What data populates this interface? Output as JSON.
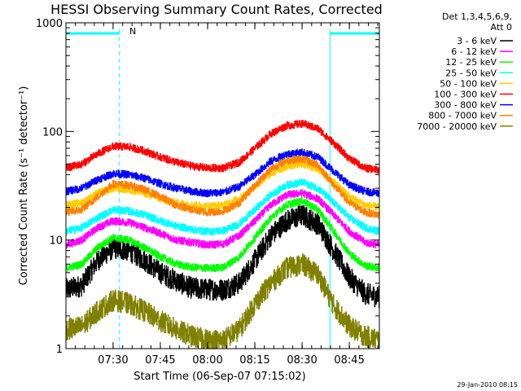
{
  "chart_data": {
    "type": "line",
    "title": "HESSI Observing Summary Count Rates, Corrected",
    "xlabel": "Start Time (06-Sep-07 07:15:02)",
    "ylabel": "Corrected Count Rate (s⁻¹ detector⁻¹)",
    "yscale": "log",
    "ylim": [
      1,
      1000
    ],
    "xlim": [
      0,
      5970
    ],
    "x_tick_labels": [
      "07:30",
      "07:45",
      "08:00",
      "08:15",
      "08:30",
      "08:45"
    ],
    "x_ticks": [
      898,
      1798,
      2698,
      3598,
      4498,
      5398
    ],
    "y_tick_labels": [
      "1",
      "10",
      "100",
      "1000"
    ],
    "y_ticks": [
      1,
      10,
      100,
      1000
    ],
    "grid": false,
    "legend_position": "right",
    "legend_header": [
      "Det 1,3,4,5,6,9,",
      "Att 0"
    ],
    "timestamp": "29-Jan-2010 08:15",
    "annotation": "N",
    "annotation_color": "#00ffff",
    "night_intervals": [
      [
        0,
        1020
      ],
      [
        5030,
        5970
      ]
    ],
    "saa_dashed_lines": [
      1020,
      5970
    ],
    "solid_boundary_lines": [
      5030
    ],
    "series": [
      {
        "name": "3 - 6 keV",
        "color": "#000000",
        "x": [
          0,
          300,
          600,
          900,
          1200,
          1500,
          1800,
          2100,
          2400,
          2700,
          3000,
          3300,
          3600,
          3900,
          4200,
          4500,
          4800,
          5100,
          5400,
          5700,
          5970
        ],
        "values": [
          3.5,
          3.8,
          6.5,
          8.5,
          8.0,
          6.5,
          5.0,
          4.2,
          3.6,
          3.5,
          3.5,
          4.0,
          6.5,
          11,
          15,
          17,
          14,
          8.0,
          4.5,
          3.2,
          3.0
        ]
      },
      {
        "name": "6 - 12 keV",
        "color": "#ff00ff",
        "x": [
          0,
          300,
          600,
          900,
          1200,
          1500,
          1800,
          2100,
          2400,
          2700,
          3000,
          3300,
          3600,
          3900,
          4200,
          4500,
          4800,
          5100,
          5400,
          5700,
          5970
        ],
        "values": [
          9.0,
          10,
          13,
          15,
          14.5,
          13,
          11.5,
          10,
          9.5,
          9.0,
          9.2,
          11,
          15,
          21,
          26,
          27,
          24,
          17,
          12,
          9.5,
          9.0
        ]
      },
      {
        "name": "12 - 25 keV",
        "color": "#00ff00",
        "x": [
          0,
          300,
          600,
          900,
          1200,
          1500,
          1800,
          2100,
          2400,
          2700,
          3000,
          3300,
          3600,
          3900,
          4200,
          4500,
          4800,
          5100,
          5400,
          5700,
          5970
        ],
        "values": [
          5.5,
          6.0,
          8.5,
          10.5,
          10,
          8.5,
          7.0,
          6.0,
          5.6,
          5.5,
          5.6,
          7.0,
          10.5,
          16,
          21,
          23,
          19,
          12,
          7.5,
          5.8,
          5.5
        ]
      },
      {
        "name": "25 - 50 keV",
        "color": "#00ffff",
        "x": [
          0,
          300,
          600,
          900,
          1200,
          1500,
          1800,
          2100,
          2400,
          2700,
          3000,
          3300,
          3600,
          3900,
          4200,
          4500,
          4800,
          5100,
          5400,
          5700,
          5970
        ],
        "values": [
          12,
          13,
          16,
          19,
          18.5,
          17,
          15,
          13.5,
          12.5,
          12,
          12.2,
          14,
          19,
          26,
          32,
          34,
          30,
          22,
          16,
          13,
          12
        ]
      },
      {
        "name": "50 - 100 keV",
        "color": "#ffcc00",
        "x": [
          0,
          300,
          600,
          900,
          1200,
          1500,
          1800,
          2100,
          2400,
          2700,
          3000,
          3300,
          3600,
          3900,
          4200,
          4500,
          4800,
          5100,
          5400,
          5700,
          5970
        ],
        "values": [
          21,
          22,
          27,
          30,
          29,
          27,
          24,
          22,
          21,
          20.5,
          21,
          24,
          31,
          41,
          48,
          50,
          45,
          34,
          25,
          21,
          20
        ]
      },
      {
        "name": "100 - 300 keV",
        "color": "#ff0000",
        "x": [
          0,
          300,
          600,
          900,
          1200,
          1500,
          1800,
          2100,
          2400,
          2700,
          3000,
          3300,
          3600,
          3900,
          4200,
          4500,
          4800,
          5100,
          5400,
          5700,
          5970
        ],
        "values": [
          46,
          50,
          62,
          73,
          72,
          66,
          58,
          52,
          48,
          46,
          46,
          52,
          70,
          95,
          113,
          118,
          106,
          78,
          56,
          46,
          44
        ]
      },
      {
        "name": "300 - 800 keV",
        "color": "#0000ff",
        "x": [
          0,
          300,
          600,
          900,
          1200,
          1500,
          1800,
          2100,
          2400,
          2700,
          3000,
          3300,
          3600,
          3900,
          4200,
          4500,
          4800,
          5100,
          5400,
          5700,
          5970
        ],
        "values": [
          28,
          30,
          36,
          41,
          40,
          37,
          33,
          30,
          28,
          27,
          27.5,
          31,
          40,
          53,
          62,
          64,
          58,
          43,
          32,
          28,
          27
        ]
      },
      {
        "name": "800 - 7000 keV",
        "color": "#ff8000",
        "x": [
          0,
          300,
          600,
          900,
          1200,
          1500,
          1800,
          2100,
          2400,
          2700,
          3000,
          3300,
          3600,
          3900,
          4200,
          4500,
          4800,
          5100,
          5400,
          5700,
          5970
        ],
        "values": [
          18,
          19,
          25,
          33,
          32,
          29,
          25,
          21,
          19,
          18,
          18.5,
          22,
          32,
          45,
          54,
          56,
          49,
          32,
          22,
          18,
          17
        ]
      },
      {
        "name": "7000 - 20000 keV",
        "color": "#808000",
        "x": [
          0,
          300,
          600,
          900,
          1200,
          1500,
          1800,
          2100,
          2400,
          2700,
          3000,
          3300,
          3600,
          3900,
          4200,
          4500,
          4800,
          5100,
          5400,
          5700,
          5970
        ],
        "values": [
          1.5,
          1.6,
          2.2,
          2.8,
          2.6,
          2.2,
          1.8,
          1.5,
          1.3,
          1.2,
          1.2,
          1.5,
          2.6,
          4.0,
          5.5,
          6.0,
          4.8,
          2.5,
          1.6,
          1.3,
          1.2
        ]
      }
    ]
  }
}
